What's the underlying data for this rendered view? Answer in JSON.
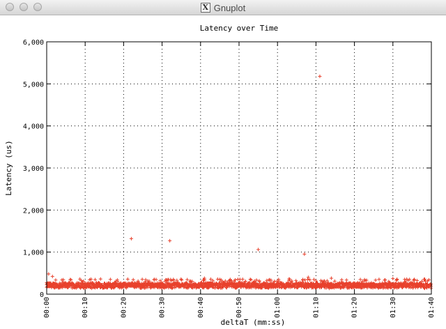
{
  "window": {
    "title": "Gnuplot",
    "icon": "x11-icon"
  },
  "chart_data": {
    "type": "scatter",
    "title": "Latency over Time",
    "xlabel": "deltaT (mm:ss)",
    "ylabel": "Latency (us)",
    "xlim": [
      0,
      100
    ],
    "ylim": [
      0,
      6000
    ],
    "x_ticks": [
      {
        "value": 0,
        "label": "00:00"
      },
      {
        "value": 10,
        "label": "00:10"
      },
      {
        "value": 20,
        "label": "00:20"
      },
      {
        "value": 30,
        "label": "00:30"
      },
      {
        "value": 40,
        "label": "00:40"
      },
      {
        "value": 50,
        "label": "00:50"
      },
      {
        "value": 60,
        "label": "01:00"
      },
      {
        "value": 70,
        "label": "01:10"
      },
      {
        "value": 80,
        "label": "01:20"
      },
      {
        "value": 90,
        "label": "01:30"
      },
      {
        "value": 100,
        "label": "01:40"
      }
    ],
    "y_ticks": [
      {
        "value": 0,
        "label": "0"
      },
      {
        "value": 1000,
        "label": "1,000"
      },
      {
        "value": 2000,
        "label": "2,000"
      },
      {
        "value": 3000,
        "label": "3,000"
      },
      {
        "value": 4000,
        "label": "4,000"
      },
      {
        "value": 5000,
        "label": "5,000"
      },
      {
        "value": 6000,
        "label": "6,000"
      }
    ],
    "grid": true,
    "marker": "+",
    "color": "#e8412c",
    "band": {
      "x_range": [
        0,
        100
      ],
      "typical_min": 150,
      "typical_max": 300,
      "baseline": 210
    },
    "outliers": [
      {
        "x": 22,
        "y": 1320
      },
      {
        "x": 32,
        "y": 1270
      },
      {
        "x": 55,
        "y": 1060
      },
      {
        "x": 67,
        "y": 950
      },
      {
        "x": 71,
        "y": 5180
      },
      {
        "x": 0.5,
        "y": 480
      },
      {
        "x": 1.5,
        "y": 420
      },
      {
        "x": 14,
        "y": 360
      },
      {
        "x": 28,
        "y": 350
      },
      {
        "x": 41,
        "y": 380
      },
      {
        "x": 45,
        "y": 350
      },
      {
        "x": 49,
        "y": 340
      },
      {
        "x": 63,
        "y": 360
      },
      {
        "x": 68,
        "y": 400
      },
      {
        "x": 74,
        "y": 380
      },
      {
        "x": 88,
        "y": 340
      },
      {
        "x": 90,
        "y": 370
      }
    ]
  }
}
